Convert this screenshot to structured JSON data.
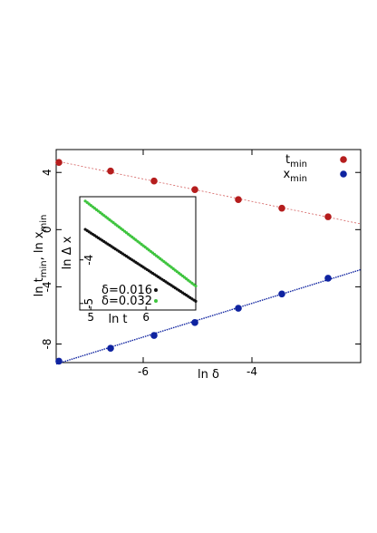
{
  "chart_data": [
    {
      "type": "scatter",
      "xlabel": "ln δ",
      "ylabel": "ln t",
      "ylabel_sub1": "min",
      "ylabel_mid": ", ln x",
      "ylabel_sub2": "min",
      "xlim": [
        -7.6,
        -2.0
      ],
      "ylim": [
        -9.3,
        5.6
      ],
      "xticks": [
        -6,
        -4
      ],
      "yticks": [
        4,
        0,
        -4,
        -8
      ],
      "grid": false,
      "legend_position": "top-right",
      "series": [
        {
          "name": "t",
          "name_sub": "min",
          "color": "#b51d1d",
          "x": [
            -7.55,
            -6.6,
            -5.8,
            -5.05,
            -4.25,
            -3.45,
            -2.6
          ],
          "y": [
            4.7,
            4.1,
            3.4,
            2.8,
            2.1,
            1.5,
            0.9
          ]
        },
        {
          "name": "x",
          "name_sub": "min",
          "color": "#0f23a0",
          "x": [
            -7.55,
            -6.6,
            -5.8,
            -5.05,
            -4.25,
            -3.45,
            -2.6
          ],
          "y": [
            -9.2,
            -8.3,
            -7.4,
            -6.5,
            -5.5,
            -4.5,
            -3.4
          ]
        }
      ],
      "fit_lines": [
        {
          "color": "#d46060",
          "x": [
            -7.6,
            -2.0
          ],
          "y": [
            4.8,
            0.4
          ]
        },
        {
          "color": "#0f23a0",
          "x": [
            -7.6,
            -2.0
          ],
          "y": [
            -9.4,
            -2.8
          ]
        }
      ]
    },
    {
      "type": "scatter",
      "xlabel": "ln t",
      "ylabel": "ln Δ x",
      "xlim": [
        4.8,
        6.9
      ],
      "ylim": [
        -5.15,
        -2.55
      ],
      "xticks": [
        5,
        6
      ],
      "yticks": [
        -4,
        -5
      ],
      "legend_position": "bottom-left",
      "series": [
        {
          "name": "δ=0.016",
          "color": "#111111",
          "x_start": 4.9,
          "x_end": 6.9,
          "y_start": -3.3,
          "y_end": -4.95,
          "count": 60
        },
        {
          "name": "δ=0.032",
          "color": "#3ec43e",
          "x_start": 4.9,
          "x_end": 6.9,
          "y_start": -2.65,
          "y_end": -4.6,
          "count": 60
        }
      ]
    }
  ]
}
